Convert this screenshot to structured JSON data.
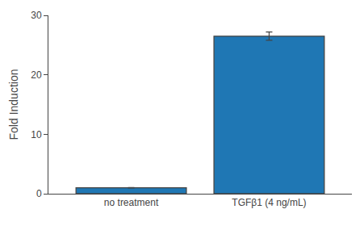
{
  "chart_data": {
    "type": "bar",
    "categories": [
      "no treatment",
      "TGFβ1 (4 ng/mL)"
    ],
    "values": [
      1.0,
      26.5
    ],
    "errors": [
      0.05,
      0.7
    ],
    "ylabel": "Fold Induction",
    "ylim": [
      0,
      30
    ],
    "yticks": [
      0,
      10,
      20,
      30
    ],
    "grid": false
  }
}
